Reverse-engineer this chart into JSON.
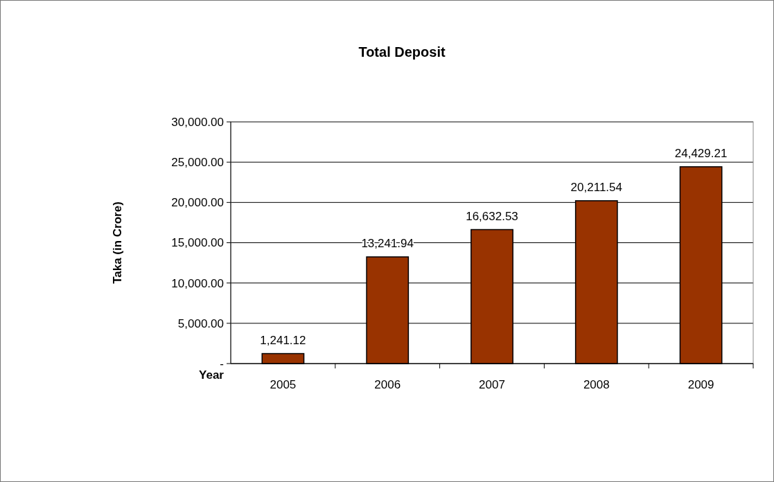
{
  "chart_data": {
    "type": "bar",
    "title": "Total Deposit",
    "xlabel": "Year",
    "ylabel": "Taka (in Crore)",
    "categories": [
      "2005",
      "2006",
      "2007",
      "2008",
      "2009"
    ],
    "values": [
      1241.12,
      13241.94,
      16632.53,
      20211.54,
      24429.21
    ],
    "color": "#993300",
    "ylim": [
      0,
      30000
    ],
    "yticks": [
      {
        "value": 0,
        "label": "-"
      },
      {
        "value": 5000,
        "label": "5,000.00"
      },
      {
        "value": 10000,
        "label": "10,000.00"
      },
      {
        "value": 15000,
        "label": "15,000.00"
      },
      {
        "value": 20000,
        "label": "20,000.00"
      },
      {
        "value": 25000,
        "label": "25,000.00"
      },
      {
        "value": 30000,
        "label": "30,000.00"
      }
    ],
    "value_labels": [
      "1,241.12",
      "13,241.94",
      "16,632.53",
      "20,211.54",
      "24,429.21"
    ],
    "grid": "y"
  }
}
